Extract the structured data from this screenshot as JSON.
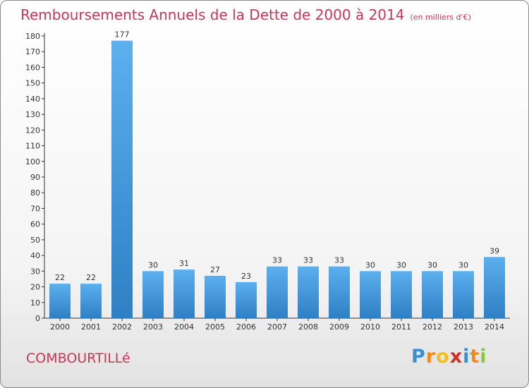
{
  "chart_data": {
    "type": "bar",
    "title": "Remboursements Annuels de la Dette de 2000 à 2014",
    "subtitle": "(en milliers d'€)",
    "xlabel": "",
    "ylabel": "",
    "categories": [
      "2000",
      "2001",
      "2002",
      "2003",
      "2004",
      "2005",
      "2006",
      "2007",
      "2008",
      "2009",
      "2010",
      "2011",
      "2012",
      "2013",
      "2014"
    ],
    "values": [
      22,
      22,
      177,
      30,
      31,
      27,
      23,
      33,
      33,
      33,
      30,
      30,
      30,
      30,
      39
    ],
    "ylim": [
      0,
      180
    ],
    "yticks": [
      0,
      10,
      20,
      30,
      40,
      50,
      60,
      70,
      80,
      90,
      100,
      110,
      120,
      130,
      140,
      150,
      160,
      170,
      180
    ],
    "grid": false,
    "legend": "none",
    "bar_color": "#4b9fe0"
  },
  "commune": "COMBOURTILLé",
  "logo": {
    "letters": [
      "P",
      "r",
      "o",
      "x",
      "i",
      "t",
      "i"
    ],
    "colors": [
      "#3a8fd4",
      "#f08a1c",
      "#f0c020",
      "#d0302a",
      "#3a8fd4",
      "#f08a1c",
      "#8cc63e"
    ]
  },
  "colors": {
    "title": "#c8365a",
    "axis": "#333333"
  }
}
